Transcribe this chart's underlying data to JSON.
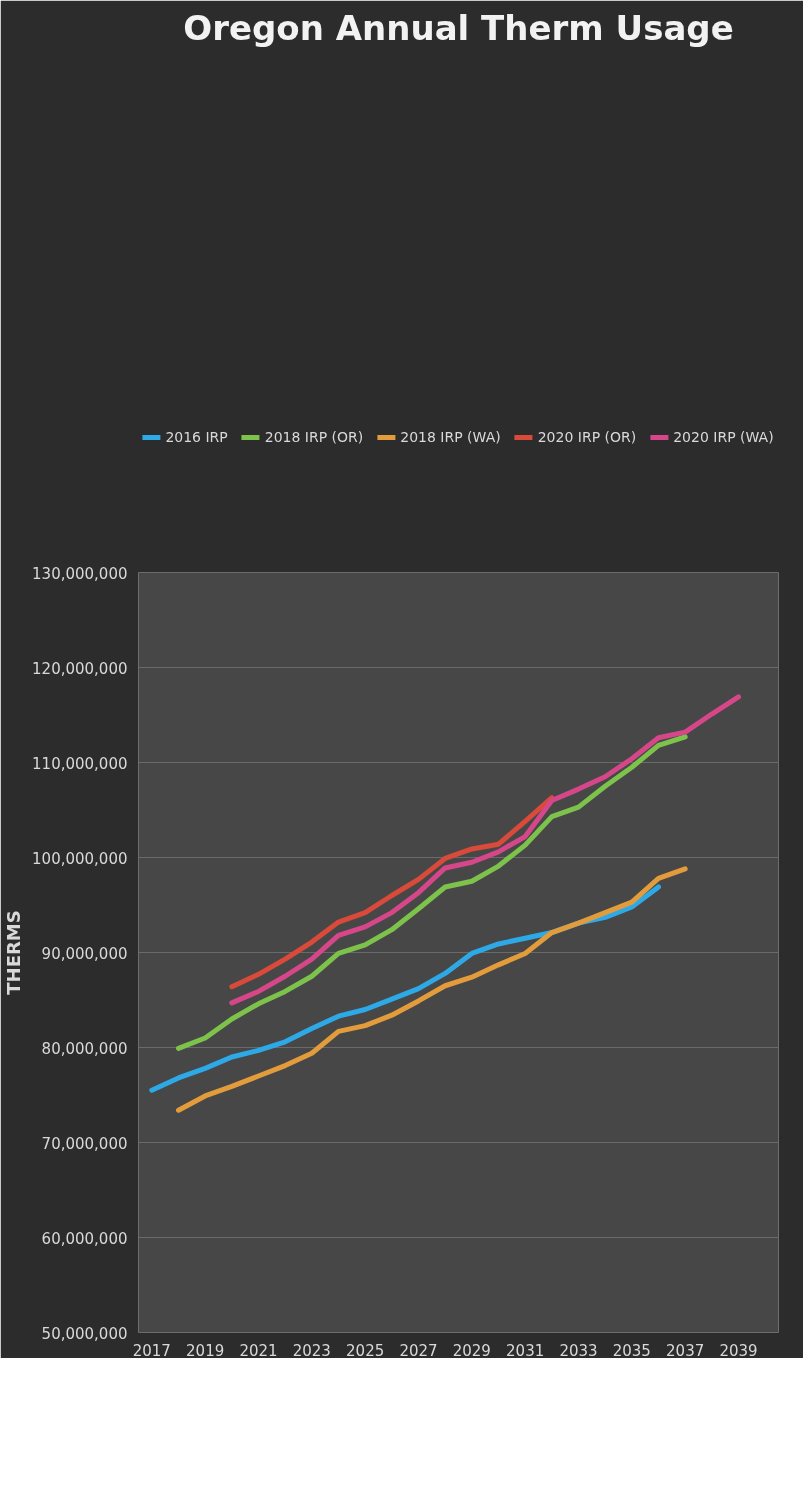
{
  "chart_data": {
    "type": "line",
    "title": "Oregon Annual Therm Usage",
    "ylabel": "THERMS",
    "x": [
      2017,
      2018,
      2019,
      2020,
      2021,
      2022,
      2023,
      2024,
      2025,
      2026,
      2027,
      2028,
      2029,
      2030,
      2031,
      2032,
      2033,
      2034,
      2035,
      2036,
      2037,
      2038,
      2039
    ],
    "xlim": [
      2016.5,
      2040.5
    ],
    "xticks": [
      2017,
      2019,
      2021,
      2023,
      2025,
      2027,
      2029,
      2031,
      2033,
      2035,
      2037,
      2039
    ],
    "ylim": [
      50000000,
      130000000
    ],
    "yticks": [
      {
        "value": 50000000,
        "label": "50,000,000"
      },
      {
        "value": 60000000,
        "label": "60,000,000"
      },
      {
        "value": 70000000,
        "label": "70,000,000"
      },
      {
        "value": 80000000,
        "label": "80,000,000"
      },
      {
        "value": 90000000,
        "label": "90,000,000"
      },
      {
        "value": 100000000,
        "label": "100,000,000"
      },
      {
        "value": 110000000,
        "label": "110,000,000"
      },
      {
        "value": 120000000,
        "label": "120,000,000"
      },
      {
        "value": 130000000,
        "label": "130,000,000"
      }
    ],
    "grid": "y",
    "legend": "top",
    "series": [
      {
        "name": "2016 IRP",
        "color": "#2ea9e8",
        "values": [
          75500000,
          76800000,
          77800000,
          79000000,
          79700000,
          80600000,
          82000000,
          83300000,
          84000000,
          85100000,
          86200000,
          87800000,
          89900000,
          90900000,
          91500000,
          92100000,
          93100000,
          93700000,
          94800000,
          96900000,
          null,
          null,
          null
        ]
      },
      {
        "name": "2018 IRP (OR)",
        "color": "#7dc24b",
        "values": [
          null,
          79900000,
          81000000,
          83000000,
          84600000,
          85900000,
          87500000,
          89900000,
          90800000,
          92400000,
          94600000,
          96900000,
          97500000,
          99100000,
          101300000,
          104300000,
          105300000,
          107500000,
          109500000,
          111800000,
          112700000,
          null,
          null
        ]
      },
      {
        "name": "2018 IRP (WA)",
        "color": "#e39c3c",
        "values": [
          null,
          73400000,
          74900000,
          75900000,
          77000000,
          78100000,
          79400000,
          81700000,
          82300000,
          83400000,
          84900000,
          86500000,
          87400000,
          88700000,
          89900000,
          92100000,
          93100000,
          94200000,
          95300000,
          97800000,
          98800000,
          null,
          null
        ]
      },
      {
        "name": "2020 IRP (OR)",
        "color": "#d94a3a",
        "values": [
          null,
          null,
          null,
          86400000,
          87700000,
          89300000,
          91100000,
          93200000,
          94200000,
          96000000,
          97700000,
          99900000,
          100900000,
          101400000,
          103800000,
          106300000,
          null,
          null,
          null,
          null,
          null,
          null,
          null
        ]
      },
      {
        "name": "2020 IRP (WA)",
        "color": "#d6478a",
        "values": [
          null,
          null,
          null,
          84700000,
          85900000,
          87500000,
          89300000,
          91800000,
          92700000,
          94200000,
          96300000,
          98900000,
          99500000,
          100600000,
          102200000,
          106000000,
          107200000,
          108500000,
          110400000,
          112600000,
          113200000,
          115100000,
          116900000
        ]
      }
    ]
  }
}
